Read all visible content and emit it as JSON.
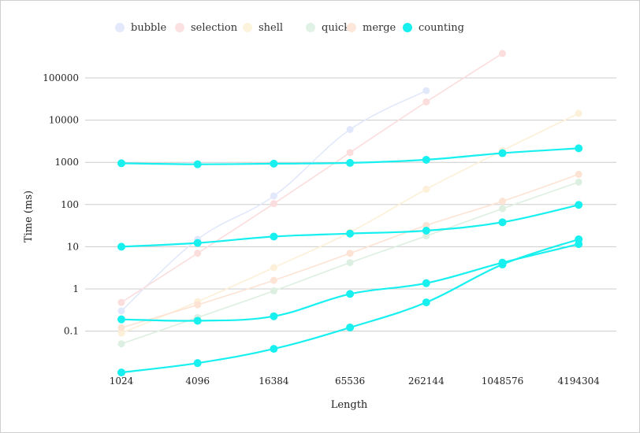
{
  "chart_data": {
    "type": "line",
    "title": "",
    "xlabel": "Length",
    "ylabel": "Time (ms)",
    "yscale": "log",
    "ylim": [
      0.01,
      400000
    ],
    "y_ticks": [
      "0.1",
      "1",
      "10",
      "100",
      "1000",
      "10000",
      "100000"
    ],
    "categories": [
      "1024",
      "4096",
      "16384",
      "65536",
      "262144",
      "1048576",
      "4194304"
    ],
    "legend_position": "top-left",
    "grid": "horizontal",
    "legend": [
      {
        "name": "bubble",
        "color": "#e3e9fb",
        "dimmed": true
      },
      {
        "name": "selection",
        "color": "#fbe1e1",
        "dimmed": true
      },
      {
        "name": "shell",
        "color": "#fdf3dc",
        "dimmed": true
      },
      {
        "name": "quick",
        "color": "#e0f2e4",
        "dimmed": true
      },
      {
        "name": "merge",
        "color": "#fde7da",
        "dimmed": true
      },
      {
        "name": "counting",
        "color": "#17f0ef",
        "dimmed": false
      }
    ],
    "series": [
      {
        "name": "bubble",
        "color": "#e2e8fb",
        "dimmed": true,
        "values": [
          0.3,
          15,
          160,
          6000,
          50000,
          null,
          null
        ]
      },
      {
        "name": "selection",
        "color": "#fbdddd",
        "dimmed": true,
        "values": [
          0.48,
          7,
          105,
          1700,
          27000,
          380000,
          null
        ]
      },
      {
        "name": "shell",
        "color": "#fdf0d8",
        "dimmed": true,
        "values": [
          0.09,
          0.5,
          3.2,
          22,
          230,
          1900,
          14500
        ]
      },
      {
        "name": "quick",
        "color": "#dcefe0",
        "dimmed": true,
        "values": [
          0.05,
          0.21,
          0.9,
          4.2,
          18,
          80,
          340
        ]
      },
      {
        "name": "merge",
        "color": "#fde3d4",
        "dimmed": true,
        "values": [
          0.12,
          0.42,
          1.6,
          7,
          32,
          120,
          520
        ]
      },
      {
        "name": "counting",
        "color": "#17f0ef",
        "dimmed": false,
        "values": [
          950,
          900,
          930,
          970,
          1150,
          1650,
          2150
        ]
      },
      {
        "name": "counting",
        "color": "#17f0ef",
        "dimmed": false,
        "values": [
          10,
          12.3,
          17.4,
          20.5,
          24,
          38,
          98
        ]
      },
      {
        "name": "counting",
        "color": "#17f0ef",
        "dimmed": false,
        "values": [
          0.19,
          0.176,
          0.225,
          0.76,
          1.37,
          4.2,
          11.5
        ]
      },
      {
        "name": "counting",
        "color": "#17f0ef",
        "dimmed": false,
        "values": [
          0.0105,
          0.0175,
          0.038,
          0.122,
          0.48,
          3.8,
          15
        ]
      }
    ]
  }
}
